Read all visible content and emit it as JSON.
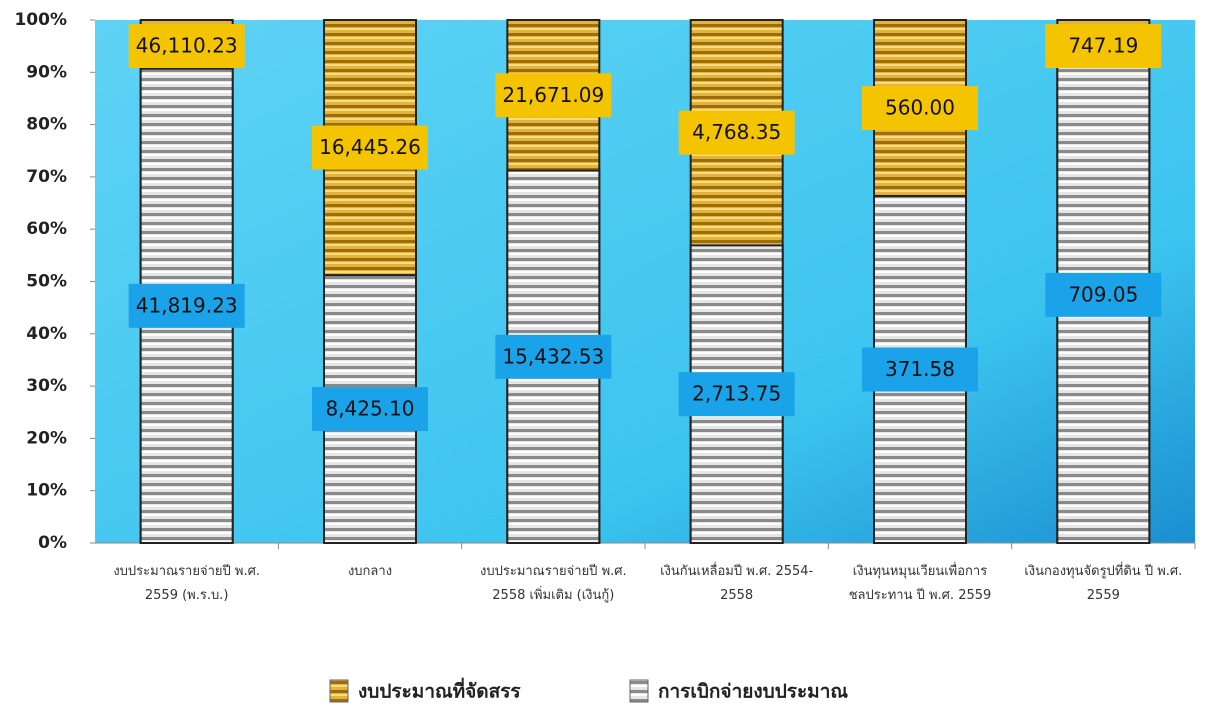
{
  "chart_data": {
    "type": "bar",
    "stacking": "percent",
    "categories": [
      "งบประมาณรายจ่ายปี พ.ศ. 2559 (พ.ร.บ.)",
      "งบกลาง",
      "งบประมาณรายจ่ายปี พ.ศ. 2558 เพิ่มเติม (เงินกู้)",
      "เงินกันเหลื่อมปี พ.ศ. 2554-2558",
      "เงินทุนหมุนเวียนเพื่อการชลประทาน ปี พ.ศ. 2559",
      "เงินกองทุนจัดรูปที่ดิน ปี พ.ศ. 2559"
    ],
    "series": [
      {
        "name": "งบประมาณที่จัดสรร",
        "color": "#e8b22a",
        "label_color": "#f5c400",
        "values": [
          46110.23,
          16445.26,
          21671.09,
          4768.35,
          560.0,
          747.19
        ],
        "value_labels": [
          "46,110.23",
          "16,445.26",
          "21,671.09",
          "4,768.35",
          "560.00",
          "747.19"
        ]
      },
      {
        "name": "การเบิกจ่ายงบประมาณ",
        "color": "#d8d8d8",
        "label_color": "#1aa3e8",
        "values": [
          41819.23,
          8425.1,
          15432.53,
          2713.75,
          371.58,
          709.05
        ],
        "value_labels": [
          "41,819.23",
          "8,425.10",
          "15,432.53",
          "2,713.75",
          "371.58",
          "709.05"
        ]
      }
    ],
    "ylim": [
      0,
      100
    ],
    "yticks": [
      {
        "value": 0,
        "label": "0%"
      },
      {
        "value": 10,
        "label": "10%"
      },
      {
        "value": 20,
        "label": "20%"
      },
      {
        "value": 30,
        "label": "30%"
      },
      {
        "value": 40,
        "label": "40%"
      },
      {
        "value": 50,
        "label": "50%"
      },
      {
        "value": 60,
        "label": "60%"
      },
      {
        "value": 70,
        "label": "70%"
      },
      {
        "value": 80,
        "label": "80%"
      },
      {
        "value": 90,
        "label": "90%"
      },
      {
        "value": 100,
        "label": "100%"
      }
    ]
  }
}
